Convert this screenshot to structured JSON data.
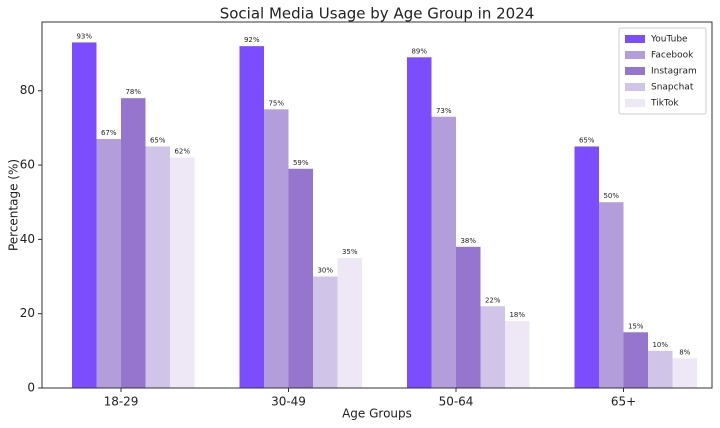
{
  "chart_data": {
    "type": "bar",
    "title": "Social Media Usage by Age Group in 2024",
    "x_label": "Age Groups",
    "y_label": "Percentage (%)",
    "categories": [
      "18-29",
      "30-49",
      "50-64",
      "65+"
    ],
    "series": [
      {
        "name": "YouTube",
        "color": "#7c4dff",
        "values": [
          93,
          92,
          89,
          65
        ],
        "value_labels": [
          "93%",
          "92%",
          "89%",
          "65%"
        ]
      },
      {
        "name": "Facebook",
        "color": "#b39ddb",
        "values": [
          67,
          75,
          73,
          50
        ],
        "value_labels": [
          "67%",
          "75%",
          "73%",
          "50%"
        ]
      },
      {
        "name": "Instagram",
        "color": "#9575cd",
        "values": [
          78,
          59,
          38,
          15
        ],
        "value_labels": [
          "78%",
          "59%",
          "38%",
          "15%"
        ]
      },
      {
        "name": "Snapchat",
        "color": "#d1c4e9",
        "values": [
          65,
          30,
          22,
          10
        ],
        "value_labels": [
          "65%",
          "30%",
          "22%",
          "10%"
        ]
      },
      {
        "name": "TikTok",
        "color": "#ede7f6",
        "values": [
          62,
          35,
          18,
          8
        ],
        "value_labels": [
          "62%",
          "35%",
          "18%",
          "8%"
        ]
      }
    ],
    "ylim": [
      0,
      98.5
    ],
    "yticks": [
      0,
      20,
      40,
      60,
      80
    ],
    "grid": false,
    "legend": "upper right"
  }
}
